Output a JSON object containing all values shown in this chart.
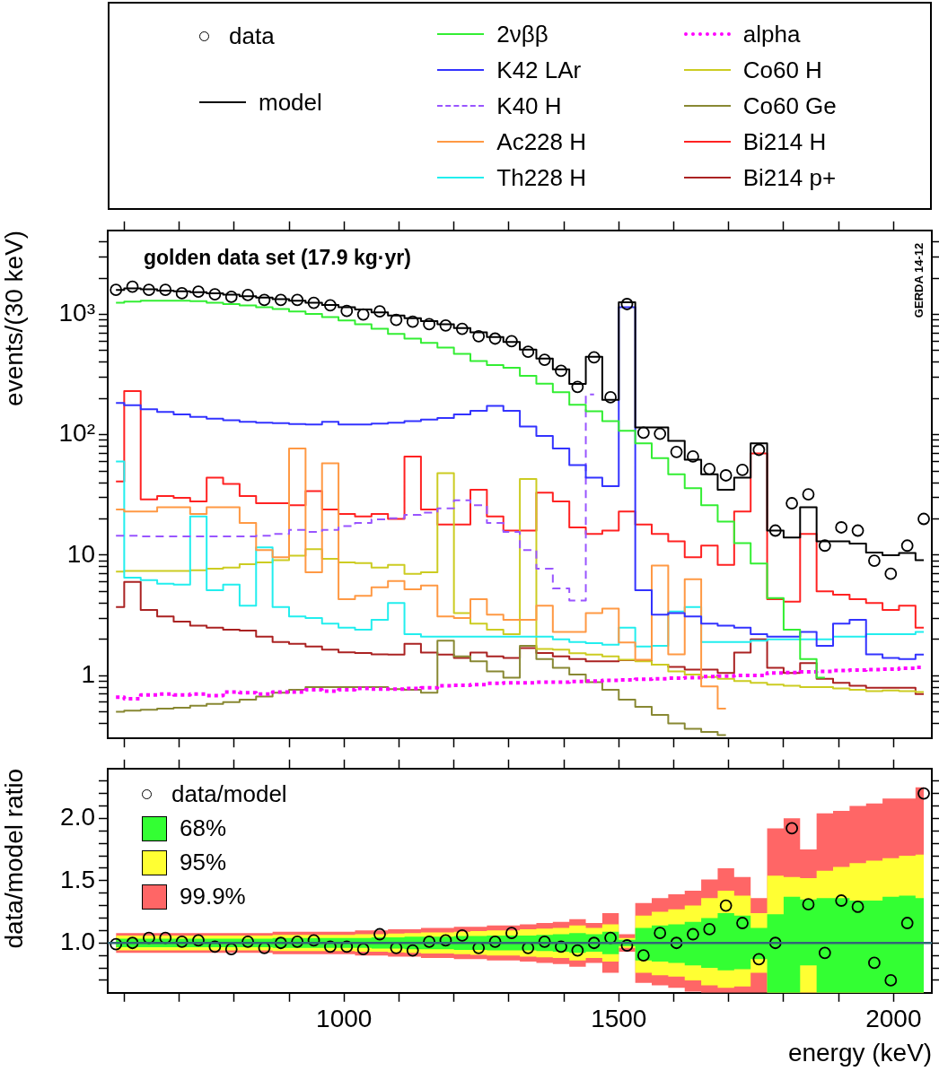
{
  "chart_data": [
    {
      "type": "step",
      "title": "golden data set (17.9 kg·yr)",
      "ylabel": "events/(30 keV)",
      "annotations": [
        "GERDA 14-12"
      ],
      "legend": "top",
      "log": "y",
      "tick_labels": "y",
      "xlim": [
        570,
        2070
      ],
      "xticks": [
        {
          "value": 600,
          "label": null
        },
        {
          "value": 700,
          "label": null
        },
        {
          "value": 800,
          "label": null
        },
        {
          "value": 900,
          "label": null
        },
        1000,
        {
          "value": 1100,
          "label": null
        },
        {
          "value": 1200,
          "label": null
        },
        {
          "value": 1300,
          "label": null
        },
        {
          "value": 1400,
          "label": null
        },
        1500,
        {
          "value": 1600,
          "label": null
        },
        {
          "value": 1700,
          "label": null
        },
        {
          "value": 1800,
          "label": null
        },
        {
          "value": 1900,
          "label": null
        },
        2000
      ],
      "ylim": [
        0.3,
        5000
      ],
      "yticks": [
        {
          "value": 0.4,
          "label": null
        },
        {
          "value": 0.5,
          "label": null
        },
        {
          "value": 0.6,
          "label": null
        },
        {
          "value": 0.7,
          "label": null
        },
        {
          "value": 0.8,
          "label": null
        },
        {
          "value": 0.9,
          "label": null
        },
        1,
        {
          "value": 2,
          "label": null
        },
        {
          "value": 3,
          "label": null
        },
        {
          "value": 4,
          "label": null
        },
        {
          "value": 5,
          "label": null
        },
        {
          "value": 6,
          "label": null
        },
        {
          "value": 7,
          "label": null
        },
        {
          "value": 8,
          "label": null
        },
        {
          "value": 9,
          "label": null
        },
        10,
        {
          "value": 20,
          "label": null
        },
        {
          "value": 30,
          "label": null
        },
        {
          "value": 40,
          "label": null
        },
        {
          "value": 50,
          "label": null
        },
        {
          "value": 60,
          "label": null
        },
        {
          "value": 70,
          "label": null
        },
        {
          "value": 80,
          "label": null
        },
        {
          "value": 90,
          "label": null
        },
        {
          "value": 100,
          "label": "10²"
        },
        {
          "value": 200,
          "label": null
        },
        {
          "value": 300,
          "label": null
        },
        {
          "value": 400,
          "label": null
        },
        {
          "value": 500,
          "label": null
        },
        {
          "value": 600,
          "label": null
        },
        {
          "value": 700,
          "label": null
        },
        {
          "value": 800,
          "label": null
        },
        {
          "value": 900,
          "label": null
        },
        {
          "value": 1000,
          "label": "10³"
        },
        {
          "value": 2000,
          "label": null
        },
        {
          "value": 3000,
          "label": null
        },
        {
          "value": 4000,
          "label": null
        }
      ],
      "x": [
        585,
        615,
        645,
        675,
        705,
        735,
        765,
        795,
        825,
        855,
        885,
        915,
        945,
        975,
        1005,
        1035,
        1065,
        1095,
        1125,
        1155,
        1185,
        1215,
        1245,
        1275,
        1305,
        1335,
        1365,
        1395,
        1425,
        1455,
        1485,
        1515,
        1545,
        1575,
        1605,
        1635,
        1665,
        1695,
        1725,
        1755,
        1785,
        1815,
        1845,
        1875,
        1905,
        1935,
        1965,
        1995,
        2025,
        2055
      ],
      "series": [
        {
          "name": "data",
          "type": "scatter",
          "marker": "circle",
          "color": "#000000",
          "values": [
            1600,
            1700,
            1600,
            1600,
            1500,
            1550,
            1470,
            1400,
            1450,
            1320,
            1320,
            1320,
            1250,
            1190,
            1070,
            1000,
            1060,
            900,
            870,
            830,
            810,
            760,
            660,
            630,
            600,
            490,
            420,
            340,
            250,
            440,
            205,
            1220,
            104,
            102,
            72,
            66,
            52,
            46,
            51,
            75,
            16,
            27,
            32,
            12,
            17,
            16,
            9,
            7,
            12,
            20
          ]
        },
        {
          "name": "model",
          "color": "#000000",
          "values": [
            1600,
            1650,
            1620,
            1580,
            1560,
            1530,
            1500,
            1460,
            1420,
            1380,
            1340,
            1300,
            1250,
            1200,
            1150,
            1100,
            1040,
            980,
            930,
            880,
            830,
            770,
            710,
            650,
            590,
            510,
            430,
            350,
            265,
            445,
            195,
            1260,
            115,
            115,
            89,
            62,
            47,
            35,
            44,
            85,
            16,
            14,
            25,
            13,
            13,
            12.5,
            10.5,
            10,
            10.4,
            9.1
          ]
        },
        {
          "name": "2νββ",
          "color": "#33ee33",
          "values": [
            1250,
            1280,
            1300,
            1300,
            1300,
            1290,
            1250,
            1220,
            1190,
            1150,
            1110,
            1060,
            1010,
            950,
            890,
            830,
            760,
            690,
            630,
            580,
            530,
            470,
            410,
            380,
            360,
            309,
            266,
            226,
            178,
            157,
            130,
            108,
            85,
            64,
            47,
            36,
            26,
            19,
            12.6,
            8.5,
            4.4,
            2.4,
            1.37,
            0.96,
            null,
            null,
            null,
            null,
            null,
            null
          ]
        },
        {
          "name": "K42 LAr",
          "color": "#3333ff",
          "values": [
            184,
            176,
            163,
            155,
            148,
            141,
            136,
            132,
            128,
            126,
            125,
            123,
            122,
            128,
            122,
            122,
            124,
            126,
            130,
            134,
            138,
            148,
            158,
            174,
            158,
            117,
            98,
            77,
            56,
            44,
            37.5,
            1150,
            5.1,
            3.2,
            3.3,
            3.1,
            2.7,
            2.6,
            2.5,
            2.2,
            2.1,
            2.1,
            2.3,
            1.76,
            2.7,
            2.9,
            1.5,
            1.4,
            1.37,
            1.49
          ]
        },
        {
          "name": "K40 H",
          "line_style": "dashed",
          "color": "#9955ff",
          "values": [
            14.5,
            14.5,
            14.3,
            14.3,
            14.3,
            14.3,
            14.3,
            14.3,
            14.3,
            14.5,
            15,
            16.2,
            15.6,
            16.2,
            17.4,
            18.5,
            19.8,
            20.3,
            21.6,
            22.6,
            24.5,
            28.6,
            26,
            18.5,
            15.6,
            11,
            7.7,
            5.3,
            4.2,
            216,
            null,
            null,
            null,
            null,
            null,
            null,
            null,
            null,
            null,
            null,
            null,
            null,
            null,
            null,
            null,
            null,
            null,
            null,
            null,
            null
          ]
        },
        {
          "name": "Ac228 H",
          "color": "#ff9944",
          "values": [
            24,
            23,
            23,
            25,
            25,
            22,
            25,
            25,
            18.5,
            11,
            9.6,
            77,
            7.2,
            58,
            4.3,
            4.6,
            5.4,
            6.1,
            5.2,
            5.6,
            3.1,
            3.0,
            4.3,
            3.2,
            2.9,
            2.9,
            3.8,
            2.3,
            2.3,
            3.3,
            3.6,
            1.88,
            1.35,
            8.2,
            1.5,
            6.3,
            0.81,
            0.53,
            null,
            null,
            null,
            null,
            null,
            null,
            null,
            null,
            null,
            null,
            null,
            null
          ]
        },
        {
          "name": "Th228 H",
          "color": "#22eeee",
          "values": [
            60,
            6.5,
            6.2,
            5.8,
            5.7,
            21,
            5.1,
            5.7,
            3.8,
            11.6,
            3.7,
            3.1,
            3.0,
            2.7,
            2.5,
            2.4,
            2.9,
            4.0,
            2.2,
            2.1,
            2.1,
            2.1,
            2.1,
            2.1,
            2.1,
            2.1,
            2.1,
            2.0,
            1.9,
            1.86,
            1.8,
            2.5,
            1.74,
            1.76,
            3.4,
            3.7,
            1.9,
            1.9,
            1.9,
            1.95,
            2.0,
            2.0,
            2.0,
            2.0,
            2.1,
            2.1,
            2.2,
            2.2,
            2.2,
            2.3
          ]
        },
        {
          "name": "alpha",
          "line_style": "dotted",
          "color": "#ff00ff",
          "values": [
            0.66,
            0.64,
            0.69,
            0.7,
            0.69,
            0.7,
            0.68,
            0.73,
            0.72,
            0.7,
            0.73,
            0.73,
            0.76,
            0.74,
            0.76,
            0.78,
            0.77,
            0.77,
            0.78,
            0.79,
            0.82,
            0.83,
            0.84,
            0.86,
            0.87,
            0.87,
            0.88,
            0.88,
            0.89,
            0.9,
            0.91,
            0.92,
            0.93,
            0.94,
            0.95,
            0.96,
            0.98,
            0.99,
            1.0,
            1.0,
            1.05,
            1.06,
            1.07,
            1.08,
            1.1,
            1.11,
            1.12,
            1.13,
            1.15,
            1.17
          ]
        },
        {
          "name": "Co60 H",
          "color": "#cccc22",
          "values": [
            7.3,
            7.4,
            7.4,
            7.4,
            7.4,
            7.5,
            7.7,
            7.9,
            8.4,
            8.7,
            9.1,
            9.9,
            11.2,
            9.3,
            8.7,
            8.6,
            7.9,
            8.3,
            7.0,
            7.2,
            48,
            3.3,
            2.7,
            2.4,
            2.2,
            43,
            1.66,
            1.64,
            1.53,
            1.49,
            1.44,
            1.35,
            1.31,
            1.23,
            1.08,
            1.02,
            0.97,
            0.94,
            0.9,
            0.87,
            0.84,
            0.82,
            0.8,
            0.8,
            0.78,
            0.76,
            0.74,
            0.75,
            0.74,
            0.73
          ]
        },
        {
          "name": "Co60 Ge",
          "color": "#888833",
          "values": [
            0.5,
            0.51,
            0.52,
            0.53,
            0.54,
            0.56,
            0.58,
            0.6,
            0.63,
            0.67,
            0.72,
            0.76,
            0.8,
            0.8,
            0.8,
            0.8,
            0.8,
            0.77,
            0.76,
            0.72,
            1.95,
            1.44,
            1.31,
            1.08,
            0.96,
            1.76,
            1.37,
            1.16,
            1.02,
            0.88,
            0.76,
            0.63,
            0.55,
            0.47,
            0.4,
            0.36,
            0.34,
            0.32,
            null,
            null,
            null,
            null,
            null,
            null,
            null,
            null,
            null,
            null,
            null,
            null
          ]
        },
        {
          "name": "Bi214 H",
          "color": "#ff2222",
          "values": [
            41,
            231,
            29,
            31,
            30,
            28,
            44,
            39,
            31,
            27,
            27,
            26,
            34,
            24,
            22,
            21,
            22,
            20,
            66,
            24,
            18,
            18,
            35,
            21,
            16,
            16,
            33,
            28,
            17,
            15,
            16,
            23,
            18,
            15,
            13,
            9.6,
            12,
            8.3,
            23,
            70,
            4.3,
            4.1,
            15,
            5.0,
            4.7,
            4.3,
            4.0,
            3.5,
            3.8,
            2.5
          ]
        },
        {
          "name": "Bi214 p+",
          "color": "#aa2222",
          "values": [
            3.7,
            6.0,
            3.5,
            3.1,
            2.8,
            2.6,
            2.5,
            2.4,
            2.36,
            2.1,
            1.9,
            1.83,
            1.74,
            1.64,
            1.56,
            1.54,
            1.5,
            1.49,
            1.83,
            1.55,
            1.49,
            1.4,
            1.55,
            1.44,
            1.4,
            1.69,
            1.54,
            1.44,
            1.37,
            1.31,
            1.31,
            1.34,
            1.34,
            1.23,
            1.18,
            1.12,
            1.12,
            1.05,
            1.55,
            2.0,
            1.16,
            1.05,
            1.27,
            0.94,
            0.87,
            0.82,
            0.79,
            0.79,
            0.79,
            0.7
          ]
        }
      ]
    },
    {
      "type": "step",
      "xlabel": "energy (keV)",
      "ylabel": "data/model ratio",
      "legend": "top left",
      "xlim": [
        570,
        2070
      ],
      "xticks": [
        {
          "value": 600,
          "label": null
        },
        {
          "value": 700,
          "label": null
        },
        {
          "value": 800,
          "label": null
        },
        {
          "value": 900,
          "label": null
        },
        1000,
        {
          "value": 1100,
          "label": null
        },
        {
          "value": 1200,
          "label": null
        },
        {
          "value": 1300,
          "label": null
        },
        {
          "value": 1400,
          "label": null
        },
        1500,
        {
          "value": 1600,
          "label": null
        },
        {
          "value": 1700,
          "label": null
        },
        {
          "value": 1800,
          "label": null
        },
        {
          "value": 1900,
          "label": null
        },
        2000
      ],
      "ylim": [
        0.6,
        2.4
      ],
      "yticks": [
        {
          "value": 0.7,
          "label": null
        },
        {
          "value": 0.8,
          "label": null
        },
        {
          "value": 0.9,
          "label": null
        },
        {
          "value": 1,
          "label": "1.0"
        },
        {
          "value": 1.1,
          "label": null
        },
        {
          "value": 1.2,
          "label": null
        },
        {
          "value": 1.3,
          "label": null
        },
        {
          "value": 1.4,
          "label": null
        },
        {
          "value": 1.5,
          "label": "1.5"
        },
        {
          "value": 1.6,
          "label": null
        },
        {
          "value": 1.7,
          "label": null
        },
        {
          "value": 1.8,
          "label": null
        },
        {
          "value": 1.9,
          "label": null
        },
        {
          "value": 2,
          "label": "2.0"
        },
        {
          "value": 2.1,
          "label": null
        },
        {
          "value": 2.2,
          "label": null
        },
        {
          "value": 2.3,
          "label": null
        }
      ],
      "ref_lines": [
        {
          "axis": "y",
          "value": 1,
          "color": "#336677"
        }
      ],
      "x": [
        585,
        615,
        645,
        675,
        705,
        735,
        765,
        795,
        825,
        855,
        885,
        915,
        945,
        975,
        1005,
        1035,
        1065,
        1095,
        1125,
        1155,
        1185,
        1215,
        1245,
        1275,
        1305,
        1335,
        1365,
        1395,
        1425,
        1455,
        1485,
        1515,
        1545,
        1575,
        1605,
        1635,
        1665,
        1695,
        1725,
        1755,
        1785,
        1815,
        1845,
        1875,
        1905,
        1935,
        1965,
        1995,
        2025,
        2055
      ],
      "series": [
        {
          "name": "data/model",
          "type": "scatter",
          "marker": "circle",
          "color": "#000000",
          "values": [
            0.99,
            1.0,
            1.04,
            1.04,
            1.01,
            1.02,
            0.97,
            0.95,
            1.01,
            0.96,
            1.0,
            1.01,
            1.02,
            0.97,
            0.97,
            0.95,
            1.07,
            0.96,
            0.94,
            1.01,
            1.02,
            1.06,
            0.96,
            1.01,
            1.08,
            0.96,
            1.01,
            0.97,
            0.94,
            1.0,
            1.04,
            0.98,
            0.9,
            1.08,
            1.0,
            1.07,
            1.11,
            1.3,
            1.16,
            0.87,
            1.0,
            1.92,
            1.31,
            0.92,
            1.34,
            1.29,
            0.84,
            0.7,
            1.16,
            2.2
          ]
        },
        {
          "name": "68%",
          "color": "#33ff33",
          "values": [
            null,
            null,
            null,
            null,
            null,
            null,
            null,
            null,
            null,
            null,
            null,
            null,
            null,
            null,
            null,
            null,
            null,
            null,
            null,
            null,
            null,
            null,
            null,
            null,
            null,
            null,
            null,
            null,
            null,
            null,
            null,
            null,
            null,
            null,
            null,
            null,
            null,
            null,
            null,
            null,
            null,
            null,
            null,
            null,
            null,
            null,
            null,
            null,
            null,
            null
          ],
          "lower": [
            0.965,
            0.965,
            0.965,
            0.965,
            0.965,
            0.965,
            0.965,
            0.965,
            0.965,
            0.965,
            0.96,
            0.96,
            0.96,
            0.96,
            0.96,
            0.96,
            0.955,
            0.955,
            0.95,
            0.95,
            0.95,
            0.945,
            0.945,
            0.94,
            0.94,
            0.94,
            0.935,
            0.93,
            0.92,
            0.93,
            0.91,
            0.975,
            0.86,
            0.85,
            0.84,
            0.82,
            0.8,
            0.78,
            0.79,
            0.87,
            0.6,
            0.6,
            0.82,
            0.6,
            0.6,
            0.6,
            0.6,
            0.6,
            0.6,
            0.6
          ],
          "upper": [
            1.035,
            1.035,
            1.035,
            1.035,
            1.035,
            1.035,
            1.035,
            1.035,
            1.035,
            1.035,
            1.04,
            1.04,
            1.04,
            1.04,
            1.04,
            1.04,
            1.045,
            1.045,
            1.05,
            1.05,
            1.05,
            1.055,
            1.055,
            1.06,
            1.06,
            1.06,
            1.065,
            1.07,
            1.08,
            1.07,
            1.09,
            1.025,
            1.12,
            1.14,
            1.15,
            1.17,
            1.2,
            1.24,
            1.22,
            1.12,
            1.23,
            1.37,
            1.35,
            1.36,
            1.36,
            1.34,
            1.34,
            1.37,
            1.38,
            1.36
          ]
        },
        {
          "name": "95%",
          "color": "#ffff33",
          "values": [
            null,
            null,
            null,
            null,
            null,
            null,
            null,
            null,
            null,
            null,
            null,
            null,
            null,
            null,
            null,
            null,
            null,
            null,
            null,
            null,
            null,
            null,
            null,
            null,
            null,
            null,
            null,
            null,
            null,
            null,
            null,
            null,
            null,
            null,
            null,
            null,
            null,
            null,
            null,
            null,
            null,
            null,
            null,
            null,
            null,
            null,
            null,
            null,
            null,
            null
          ],
          "lower": [
            0.94,
            0.94,
            0.94,
            0.94,
            0.94,
            0.94,
            0.94,
            0.94,
            0.94,
            0.94,
            0.935,
            0.935,
            0.935,
            0.935,
            0.935,
            0.93,
            0.93,
            0.925,
            0.92,
            0.915,
            0.915,
            0.91,
            0.905,
            0.9,
            0.9,
            0.89,
            0.885,
            0.88,
            0.86,
            0.88,
            0.85,
            0.96,
            0.76,
            0.74,
            0.73,
            0.7,
            0.66,
            0.64,
            0.65,
            0.76,
            0.6,
            0.6,
            0.6,
            0.6,
            0.6,
            0.6,
            0.6,
            0.6,
            0.6,
            0.6
          ],
          "upper": [
            1.06,
            1.06,
            1.06,
            1.06,
            1.06,
            1.06,
            1.06,
            1.06,
            1.06,
            1.06,
            1.065,
            1.065,
            1.065,
            1.065,
            1.065,
            1.07,
            1.07,
            1.075,
            1.08,
            1.085,
            1.085,
            1.09,
            1.095,
            1.1,
            1.1,
            1.11,
            1.115,
            1.12,
            1.14,
            1.12,
            1.15,
            1.04,
            1.22,
            1.25,
            1.27,
            1.3,
            1.36,
            1.42,
            1.38,
            1.24,
            1.54,
            1.53,
            1.52,
            1.58,
            1.61,
            1.64,
            1.66,
            1.68,
            1.7,
            1.71
          ]
        },
        {
          "name": "99.9%",
          "color": "#ff6666",
          "values": [
            null,
            null,
            null,
            null,
            null,
            null,
            null,
            null,
            null,
            null,
            null,
            null,
            null,
            null,
            null,
            null,
            null,
            null,
            null,
            null,
            null,
            null,
            null,
            null,
            null,
            null,
            null,
            null,
            null,
            null,
            null,
            null,
            null,
            null,
            null,
            null,
            null,
            null,
            null,
            null,
            null,
            null,
            null,
            null,
            null,
            null,
            null,
            null,
            null,
            null
          ],
          "lower": [
            0.92,
            0.92,
            0.92,
            0.92,
            0.92,
            0.92,
            0.92,
            0.92,
            0.92,
            0.92,
            0.91,
            0.91,
            0.91,
            0.91,
            0.91,
            0.9,
            0.9,
            0.89,
            0.89,
            0.88,
            0.88,
            0.87,
            0.87,
            0.86,
            0.86,
            0.85,
            0.84,
            0.83,
            0.81,
            0.84,
            0.76,
            0.93,
            0.68,
            0.66,
            0.64,
            0.61,
            0.6,
            0.6,
            0.6,
            0.6,
            0.6,
            0.6,
            0.6,
            0.6,
            0.6,
            0.6,
            0.6,
            0.6,
            0.6,
            0.6
          ],
          "upper": [
            1.08,
            1.08,
            1.08,
            1.08,
            1.08,
            1.08,
            1.08,
            1.08,
            1.08,
            1.08,
            1.09,
            1.09,
            1.09,
            1.09,
            1.09,
            1.1,
            1.1,
            1.11,
            1.11,
            1.12,
            1.12,
            1.13,
            1.13,
            1.14,
            1.14,
            1.15,
            1.16,
            1.17,
            1.19,
            1.16,
            1.24,
            1.07,
            1.32,
            1.36,
            1.39,
            1.42,
            1.51,
            1.6,
            1.53,
            1.36,
            1.92,
            2.0,
            1.75,
            2.04,
            2.06,
            2.1,
            2.12,
            2.16,
            2.16,
            2.25
          ]
        }
      ]
    }
  ]
}
